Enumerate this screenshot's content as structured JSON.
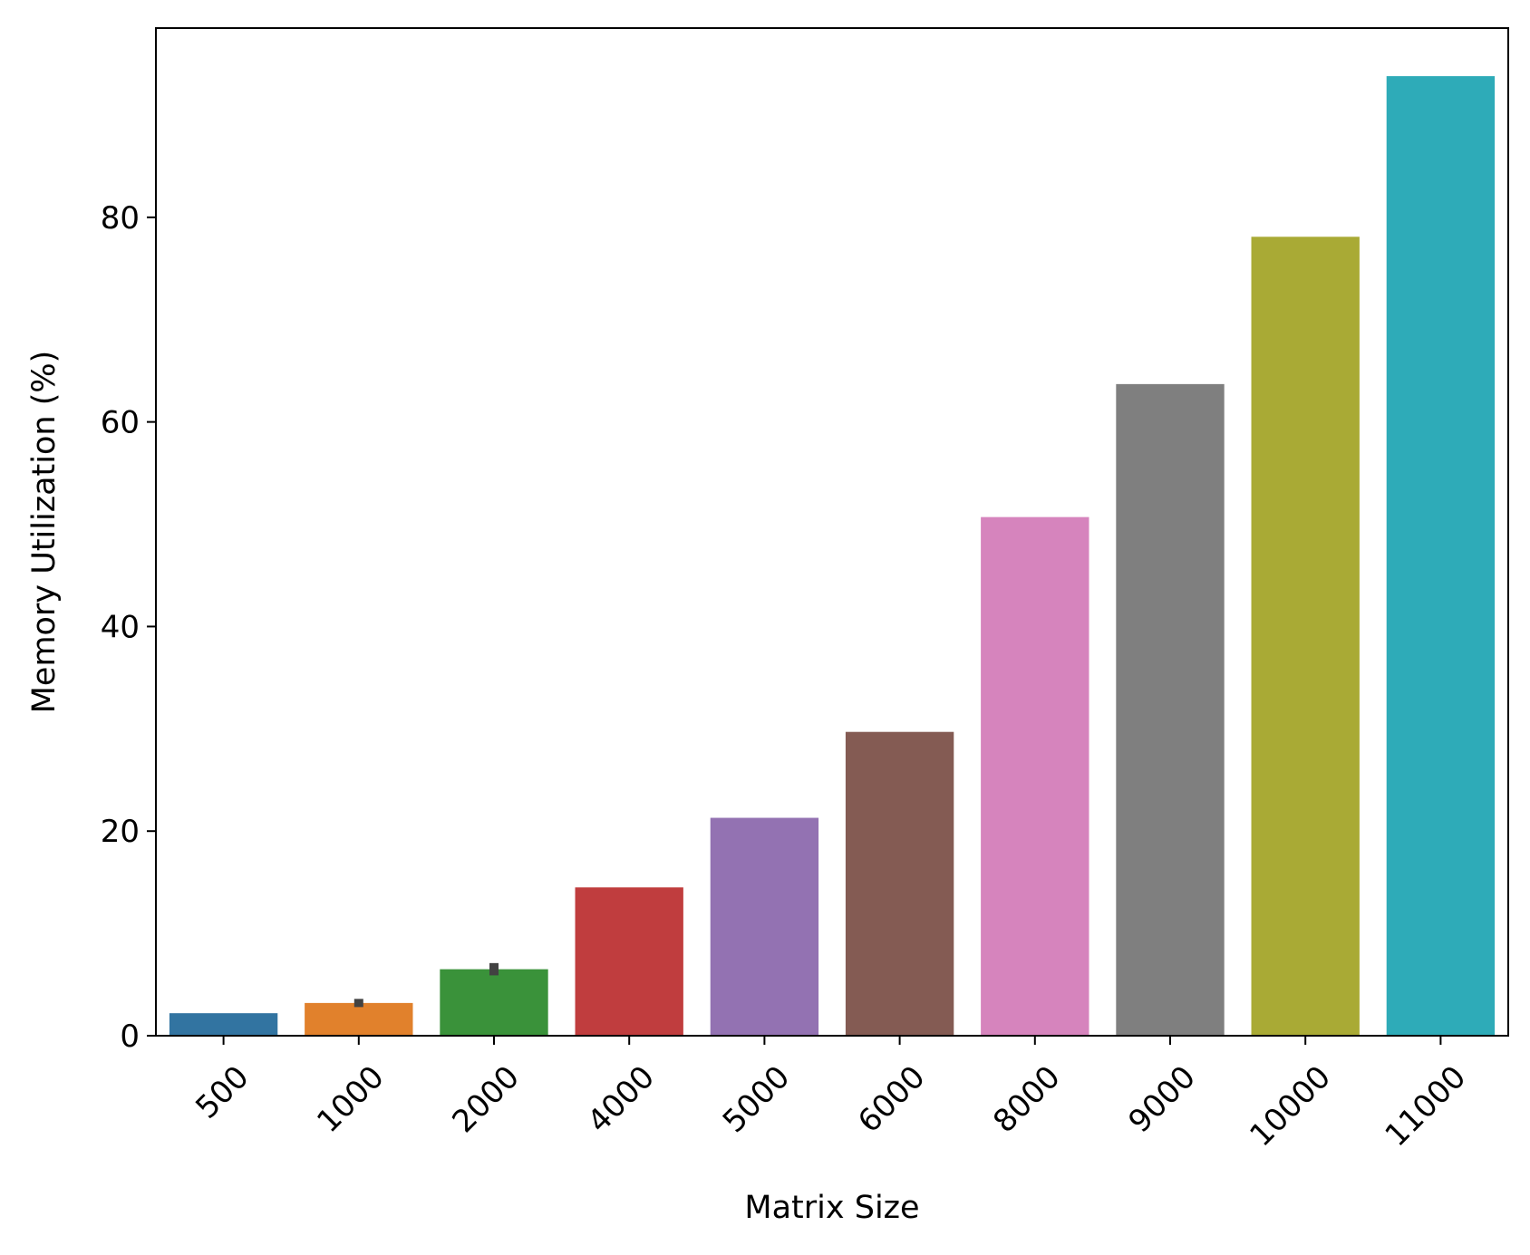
{
  "chart_data": {
    "type": "bar",
    "title": "",
    "xlabel": "Matrix Size",
    "ylabel": "Memory Utilization (%)",
    "categories": [
      "500",
      "1000",
      "2000",
      "4000",
      "5000",
      "6000",
      "8000",
      "9000",
      "10000",
      "11000"
    ],
    "values": [
      2.2,
      3.2,
      6.5,
      14.5,
      21.3,
      29.7,
      50.7,
      63.7,
      78.1,
      93.8
    ],
    "error_bars": [
      null,
      [
        2.8,
        3.6
      ],
      [
        5.9,
        7.1
      ],
      null,
      null,
      null,
      null,
      null,
      null,
      null
    ],
    "colors": [
      "#3274a1",
      "#e1812c",
      "#3a923a",
      "#c03d3e",
      "#9372b2",
      "#845b53",
      "#d684bd",
      "#7f7f7f",
      "#a9aa35",
      "#2eabb8"
    ],
    "error_color": "#424242",
    "ylim": [
      0,
      98.5
    ],
    "yticks": [
      0,
      20,
      40,
      60,
      80
    ],
    "grid": false,
    "legend": "none"
  }
}
